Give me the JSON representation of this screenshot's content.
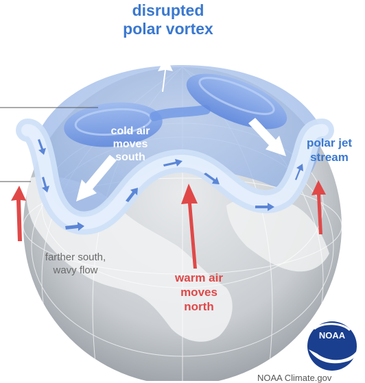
{
  "title": {
    "line1": "disrupted",
    "line2": "polar vortex"
  },
  "labels": {
    "cold_air": [
      "cold air",
      "moves",
      "south"
    ],
    "jet_stream": [
      "polar jet",
      "stream"
    ],
    "farther_south": [
      "farther south,",
      "wavy flow"
    ],
    "warm_air": [
      "warm air",
      "moves",
      "north"
    ]
  },
  "logo": {
    "text": "NOAA"
  },
  "credit": "NOAA Climate.gov",
  "colors": {
    "title_blue": "#3a78cf",
    "jet_blue": "#5b86d6",
    "warm_red": "#e04848",
    "vortex_blue": "#6f97e6",
    "globe_gray": "#bfc3c8"
  }
}
